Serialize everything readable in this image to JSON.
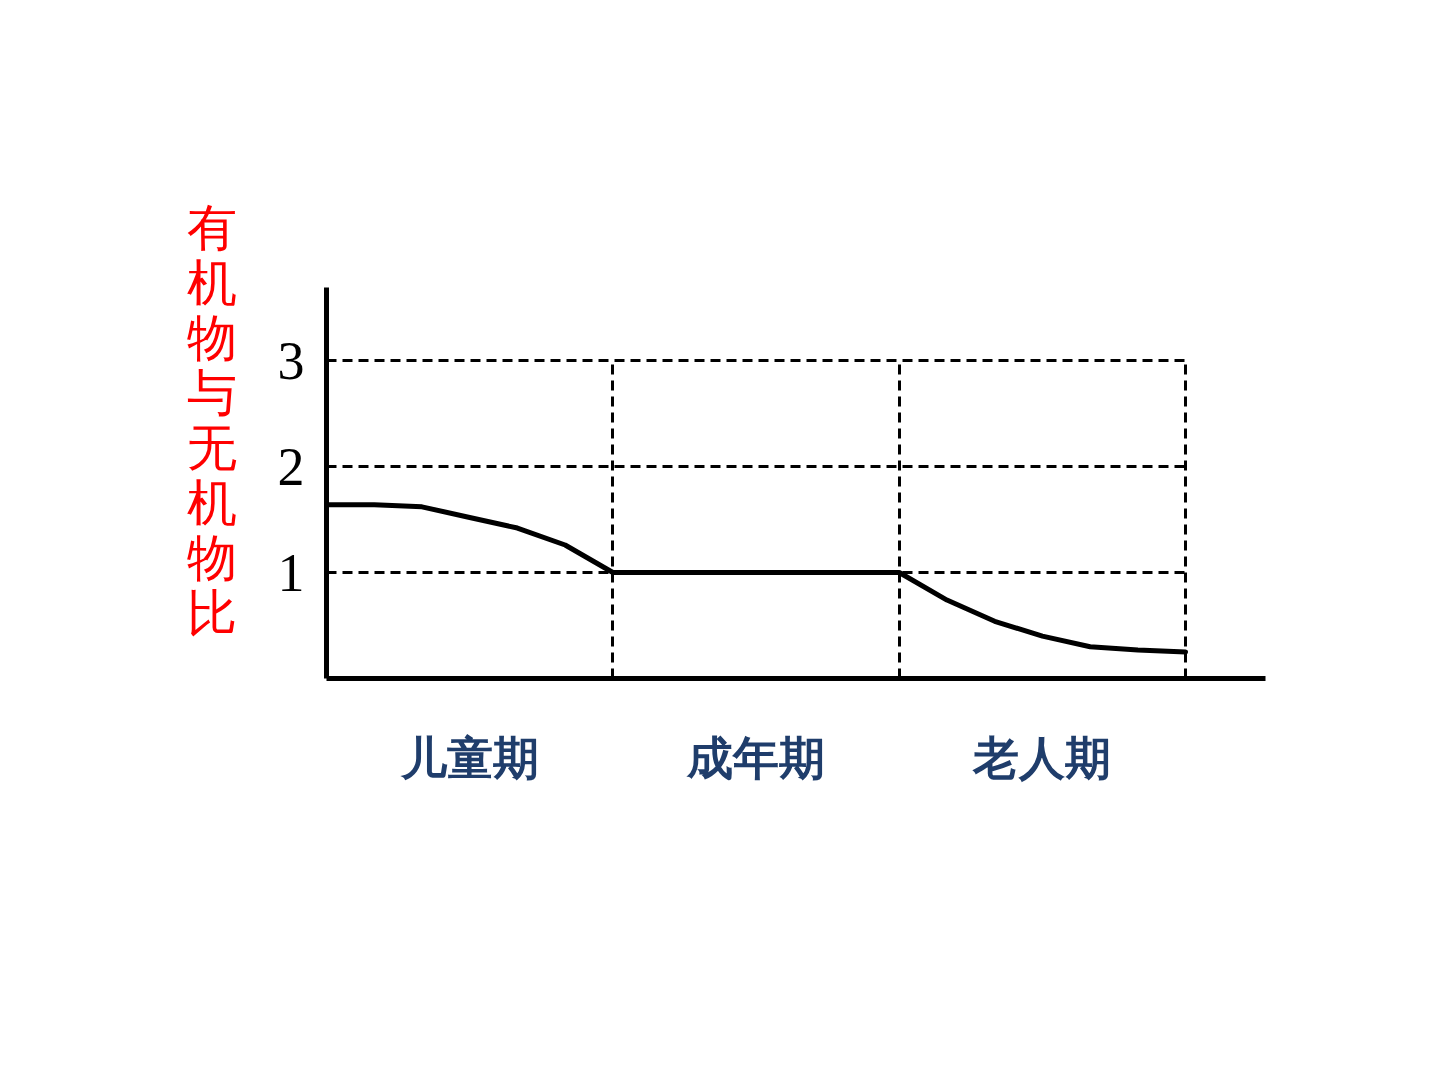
{
  "chart_data": {
    "type": "line",
    "ylabel": "有机物与无机物比",
    "categories": [
      null,
      null,
      null,
      "儿童期",
      null,
      null,
      null,
      null,
      null,
      "成年期",
      null,
      null,
      null,
      null,
      null,
      "老人期",
      null,
      null,
      null
    ],
    "series": [
      {
        "color": "#000000",
        "values": [
          1.64,
          1.64,
          1.62,
          1.52,
          1.42,
          1.26,
          1.0,
          1.0,
          1.0,
          1.0,
          1.0,
          1.0,
          1.0,
          0.74,
          0.54,
          0.4,
          0.3,
          0.27,
          0.25
        ]
      }
    ],
    "ylim": [
      0,
      3.69
    ],
    "yticks": [
      1,
      2,
      3
    ],
    "grid": true
  }
}
